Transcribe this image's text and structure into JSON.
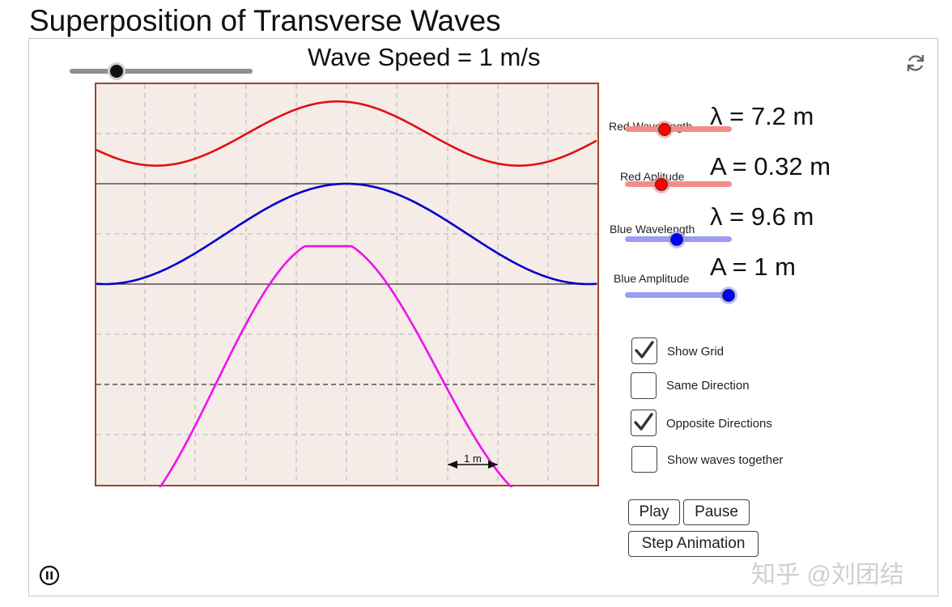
{
  "page_title": "Superposition of Transverse Waves",
  "wave_speed": {
    "label": "Wave Speed = 1 m/s",
    "value": 1,
    "min": 0,
    "max": 4,
    "color": "#111111"
  },
  "controls": {
    "red_wavelength": {
      "caption": "Red Wavelength",
      "value_text": "λ = 7.2 m",
      "value": 7.2,
      "min": 0,
      "max": 20,
      "color": "#f48b8b",
      "knob_color": "#ff0000"
    },
    "red_amplitude": {
      "caption": "Red Aplitude",
      "value_text": "A = 0.32 m",
      "value": 0.32,
      "min": 0,
      "max": 3,
      "color": "#f48b8b",
      "knob_color": "#ff0000"
    },
    "blue_wavelength": {
      "caption": "Blue Wavelength",
      "value_text": "λ = 9.6 m",
      "value": 9.6,
      "min": 0,
      "max": 15,
      "color": "#9c9cf2",
      "knob_color": "#0000ff"
    },
    "blue_amplitude": {
      "caption": "Blue Amplitude",
      "value_text": "A = 1 m",
      "value": 1,
      "min": 0,
      "max": 1,
      "color": "#9c9cf2",
      "knob_color": "#0000ff"
    }
  },
  "checkboxes": [
    {
      "label": "Show Grid",
      "checked": true
    },
    {
      "label": "Same Direction",
      "checked": false
    },
    {
      "label": "Opposite Directions",
      "checked": true
    },
    {
      "label": "Show waves together",
      "checked": false
    }
  ],
  "buttons": {
    "play": "Play",
    "pause": "Pause",
    "step": "Step Animation"
  },
  "scale_label": "1 m",
  "watermark": "知乎 @刘团结",
  "colors": {
    "canvas_bg": "#f5ebe7",
    "canvas_border": "#9a4a22",
    "red_wave": "#e01010",
    "blue_wave": "#0000c8",
    "sum_wave": "#ee10ee"
  },
  "icons": {
    "reset": "refresh-icon",
    "animation": "pause-icon"
  }
}
